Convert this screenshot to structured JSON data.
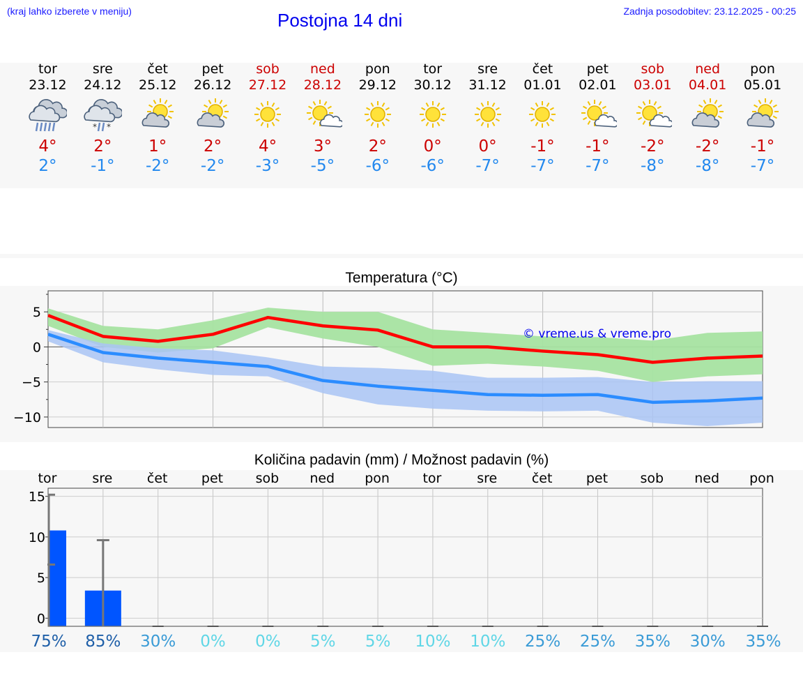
{
  "header": {
    "hint": "(kraj lahko izberete v meniju)",
    "title": "Postojna 14 dni",
    "updated": "Zadnja posodobitev: 23.12.2025 - 00:25"
  },
  "colors": {
    "weekend": "#cc0000",
    "max": "#cc0000",
    "min": "#2288ee",
    "link": "#0000ee"
  },
  "days": [
    {
      "wd": "tor",
      "date": "23.12",
      "icon": "rain-cloud-icon",
      "max": "4°",
      "min": "2°",
      "weekend": false
    },
    {
      "wd": "sre",
      "date": "24.12",
      "icon": "sleet-cloud-icon",
      "max": "2°",
      "min": "-1°",
      "weekend": false
    },
    {
      "wd": "čet",
      "date": "25.12",
      "icon": "sun-cloud-icon",
      "max": "1°",
      "min": "-2°",
      "weekend": false
    },
    {
      "wd": "pet",
      "date": "26.12",
      "icon": "sun-cloud-icon",
      "max": "2°",
      "min": "-2°",
      "weekend": false
    },
    {
      "wd": "sob",
      "date": "27.12",
      "icon": "sun-icon",
      "max": "4°",
      "min": "-3°",
      "weekend": true
    },
    {
      "wd": "ned",
      "date": "28.12",
      "icon": "sun-small-cloud-icon",
      "max": "3°",
      "min": "-5°",
      "weekend": true
    },
    {
      "wd": "pon",
      "date": "29.12",
      "icon": "sun-icon",
      "max": "2°",
      "min": "-6°",
      "weekend": false
    },
    {
      "wd": "tor",
      "date": "30.12",
      "icon": "sun-icon",
      "max": "0°",
      "min": "-6°",
      "weekend": false
    },
    {
      "wd": "sre",
      "date": "31.12",
      "icon": "sun-icon",
      "max": "0°",
      "min": "-7°",
      "weekend": false
    },
    {
      "wd": "čet",
      "date": "01.01",
      "icon": "sun-icon",
      "max": "-1°",
      "min": "-7°",
      "weekend": false
    },
    {
      "wd": "pet",
      "date": "02.01",
      "icon": "sun-small-cloud-icon",
      "max": "-1°",
      "min": "-7°",
      "weekend": false
    },
    {
      "wd": "sob",
      "date": "03.01",
      "icon": "sun-small-cloud-icon",
      "max": "-2°",
      "min": "-8°",
      "weekend": true
    },
    {
      "wd": "ned",
      "date": "04.01",
      "icon": "sun-cloud-icon",
      "max": "-2°",
      "min": "-8°",
      "weekend": true
    },
    {
      "wd": "pon",
      "date": "05.01",
      "icon": "sun-cloud-icon",
      "max": "-1°",
      "min": "-7°",
      "weekend": false
    }
  ],
  "chart_data": [
    {
      "type": "line",
      "title": "Temperatura (°C)",
      "watermark": "© vreme.us & vreme.pro",
      "ylim": [
        -11.5,
        8
      ],
      "yticks": [
        5,
        0,
        -5,
        -10
      ],
      "ytick_labels": [
        "5",
        "0",
        "−5",
        "−10"
      ],
      "x": [
        0,
        1,
        2,
        3,
        4,
        5,
        6,
        7,
        8,
        9,
        10,
        11,
        12,
        13
      ],
      "xlim": [
        0,
        13
      ],
      "series": [
        {
          "name": "max",
          "color": "#ff0000",
          "values": [
            4.5,
            1.5,
            0.8,
            1.8,
            4.2,
            3.0,
            2.4,
            0.0,
            0.0,
            -0.6,
            -1.1,
            -2.2,
            -1.6,
            -1.3
          ]
        },
        {
          "name": "min",
          "color": "#2b8cff",
          "values": [
            1.8,
            -0.8,
            -1.6,
            -2.2,
            -2.8,
            -4.8,
            -5.6,
            -6.2,
            -6.8,
            -6.9,
            -6.8,
            -7.9,
            -7.7,
            -7.3
          ]
        }
      ],
      "bands": [
        {
          "name": "max-range",
          "color": "#a6e3a1",
          "low": [
            3.0,
            0.0,
            -0.8,
            -0.2,
            2.8,
            1.2,
            0.0,
            -2.7,
            -2.4,
            -2.8,
            -3.4,
            -5.0,
            -4.2,
            -3.9
          ],
          "high": [
            5.5,
            3.0,
            2.5,
            3.8,
            5.6,
            5.0,
            5.0,
            2.5,
            2.0,
            1.5,
            1.4,
            0.9,
            2.0,
            2.2
          ]
        },
        {
          "name": "min-range",
          "color": "#a9c4f5",
          "low": [
            0.8,
            -2.2,
            -3.2,
            -4.0,
            -4.2,
            -6.6,
            -8.2,
            -8.8,
            -9.1,
            -9.2,
            -9.1,
            -10.8,
            -11.3,
            -10.8
          ],
          "high": [
            2.4,
            0.5,
            -0.2,
            -0.5,
            -1.5,
            -2.8,
            -3.0,
            -3.4,
            -4.4,
            -4.4,
            -4.3,
            -5.0,
            -4.9,
            -4.9
          ]
        }
      ]
    },
    {
      "type": "bar",
      "title": "Količina padavin (mm) / Možnost padavin (%)",
      "categories": [
        "tor",
        "sre",
        "čet",
        "pet",
        "sob",
        "ned",
        "pon",
        "tor",
        "sre",
        "čet",
        "pet",
        "sob",
        "ned",
        "pon"
      ],
      "ylim": [
        -1,
        16
      ],
      "yticks": [
        0,
        5,
        10,
        15
      ],
      "values": [
        10.8,
        3.4,
        0,
        0,
        0,
        0,
        0,
        0,
        0,
        0,
        0,
        0,
        0,
        0
      ],
      "error_low": [
        6.6,
        0,
        0,
        0,
        0,
        0,
        0,
        0,
        0,
        0,
        0,
        0,
        0,
        0
      ],
      "error_high": [
        15.2,
        9.6,
        0,
        0,
        0,
        0,
        0,
        0,
        0,
        0,
        0,
        0,
        0,
        0
      ],
      "bar_color": "#0055ff",
      "probability": [
        "75%",
        "85%",
        "30%",
        "0%",
        "0%",
        "5%",
        "5%",
        "10%",
        "10%",
        "25%",
        "25%",
        "35%",
        "30%",
        "35%"
      ],
      "probability_values": [
        75,
        85,
        30,
        0,
        0,
        5,
        5,
        10,
        10,
        25,
        25,
        35,
        30,
        35
      ]
    }
  ]
}
